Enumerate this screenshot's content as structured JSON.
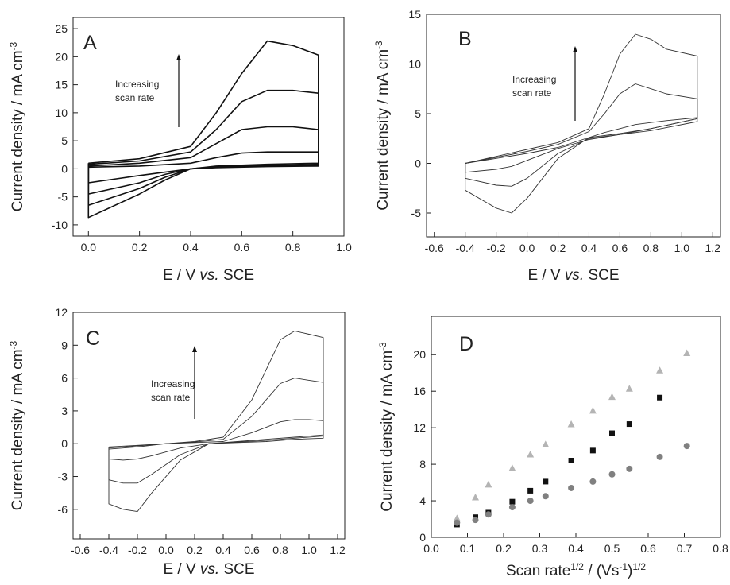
{
  "chart_data": [
    {
      "type": "line",
      "panel_label": "A",
      "annotation": [
        "Increasing",
        "scan rate"
      ],
      "xlabel": [
        {
          "text": "E / V "
        },
        {
          "text": "vs.",
          "style": "italic"
        },
        {
          "text": " SCE"
        }
      ],
      "ylabel": [
        {
          "text": "Current density / mA cm"
        },
        {
          "text": "-3",
          "sup": true
        }
      ],
      "xlim": [
        -0.06,
        1.0
      ],
      "xticks": [
        {
          "value": 0,
          "label": "0.0"
        },
        {
          "value": 0.2,
          "label": "0.2"
        },
        {
          "value": 0.4,
          "label": "0.4"
        },
        {
          "value": 0.6,
          "label": "0.6"
        },
        {
          "value": 0.8,
          "label": "0.8"
        },
        {
          "value": 1.0,
          "label": "1.0"
        }
      ],
      "ylim": [
        -12,
        27
      ],
      "yticks": [
        -10,
        -5,
        0,
        5,
        10,
        15,
        20,
        25
      ],
      "color": "#111111",
      "series": [
        {
          "x": [
            0,
            0.2,
            0.4,
            0.5,
            0.6,
            0.7,
            0.8,
            0.9,
            0.9,
            0.7,
            0.5,
            0.4,
            0.3,
            0.2,
            0,
            0
          ],
          "values": [
            1,
            1.8,
            4,
            10,
            17,
            22.8,
            22,
            20.3,
            1,
            0.8,
            0.5,
            0,
            -2,
            -4.5,
            -8.7,
            1
          ]
        },
        {
          "x": [
            0,
            0.2,
            0.4,
            0.5,
            0.6,
            0.7,
            0.8,
            0.9,
            0.9,
            0.7,
            0.5,
            0.4,
            0.3,
            0.2,
            0,
            0
          ],
          "values": [
            0.8,
            1.4,
            3,
            7,
            12,
            14,
            14,
            13.5,
            0.8,
            0.6,
            0.4,
            0,
            -1.5,
            -3.5,
            -6.5,
            0.8
          ]
        },
        {
          "x": [
            0,
            0.2,
            0.4,
            0.5,
            0.6,
            0.7,
            0.8,
            0.9,
            0.9,
            0.7,
            0.5,
            0.4,
            0.3,
            0.2,
            0,
            0
          ],
          "values": [
            0.5,
            1,
            2,
            4.5,
            7,
            7.5,
            7.5,
            7,
            0.6,
            0.5,
            0.3,
            0,
            -1,
            -2.5,
            -4.5,
            0.5
          ]
        },
        {
          "x": [
            0,
            0.2,
            0.4,
            0.5,
            0.6,
            0.7,
            0.8,
            0.9,
            0.9,
            0.7,
            0.5,
            0.4,
            0.3,
            0.2,
            0,
            0
          ],
          "values": [
            0.3,
            0.5,
            1,
            2,
            2.8,
            3,
            3,
            3,
            0.5,
            0.4,
            0.2,
            0,
            -0.6,
            -1.2,
            -2.5,
            0.3
          ]
        }
      ]
    },
    {
      "type": "line",
      "panel_label": "B",
      "annotation": [
        "Increasing",
        "scan rate"
      ],
      "xlabel": [
        {
          "text": "E / V "
        },
        {
          "text": "vs.",
          "style": "italic"
        },
        {
          "text": " SCE"
        }
      ],
      "ylabel": [
        {
          "text": "Current density / mA cm"
        },
        {
          "text": "-3",
          "sup": true
        }
      ],
      "xlim": [
        -0.65,
        1.25
      ],
      "xticks": [
        {
          "value": -0.6,
          "label": "-0.6"
        },
        {
          "value": -0.4,
          "label": "-0.4"
        },
        {
          "value": -0.2,
          "label": "-0.2"
        },
        {
          "value": 0,
          "label": "0.0"
        },
        {
          "value": 0.2,
          "label": "0.2"
        },
        {
          "value": 0.4,
          "label": "0.4"
        },
        {
          "value": 0.6,
          "label": "0.6"
        },
        {
          "value": 0.8,
          "label": "0.8"
        },
        {
          "value": 1.0,
          "label": "1.0"
        },
        {
          "value": 1.2,
          "label": "1.2"
        }
      ],
      "ylim": [
        -7.4,
        15
      ],
      "yticks": [
        -5,
        0,
        5,
        10,
        15
      ],
      "color": "#333333",
      "series": [
        {
          "x": [
            -0.4,
            -0.2,
            0,
            0.2,
            0.4,
            0.5,
            0.6,
            0.7,
            0.8,
            0.9,
            1.1,
            1.1,
            0.8,
            0.6,
            0.4,
            0.2,
            0,
            -0.1,
            -0.2,
            -0.4,
            -0.4
          ],
          "values": [
            0,
            0.7,
            1.4,
            2.1,
            3.5,
            7,
            11,
            13,
            12.5,
            11.5,
            10.8,
            4.5,
            3.5,
            3,
            2.6,
            0.5,
            -3.5,
            -5,
            -4.5,
            -2.7,
            0
          ]
        },
        {
          "x": [
            -0.4,
            -0.2,
            0,
            0.2,
            0.4,
            0.5,
            0.6,
            0.7,
            0.8,
            0.9,
            1.1,
            1.1,
            0.8,
            0.6,
            0.4,
            0.2,
            0,
            -0.1,
            -0.2,
            -0.4,
            -0.4
          ],
          "values": [
            0,
            0.6,
            1.2,
            1.9,
            3.2,
            5,
            7,
            8,
            7.5,
            7,
            6.5,
            4.2,
            3.3,
            2.9,
            2.5,
            1,
            -1.5,
            -2.3,
            -2.2,
            -1.5,
            0
          ]
        },
        {
          "x": [
            -0.4,
            -0.2,
            0,
            0.2,
            0.4,
            0.5,
            0.6,
            0.7,
            0.8,
            0.9,
            1.1,
            1.1,
            0.8,
            0.6,
            0.4,
            0.2,
            0,
            -0.1,
            -0.2,
            -0.4,
            -0.4
          ],
          "values": [
            0,
            0.5,
            1,
            1.6,
            2.6,
            3.1,
            3.5,
            3.9,
            4.1,
            4.3,
            4.6,
            4.5,
            3.5,
            2.9,
            2.4,
            1.5,
            0.3,
            -0.3,
            -0.6,
            -0.9,
            0
          ]
        }
      ]
    },
    {
      "type": "line",
      "panel_label": "C",
      "annotation": [
        "Increasing",
        "scan rate"
      ],
      "xlabel": [
        {
          "text": "E / V "
        },
        {
          "text": "vs.",
          "style": "italic"
        },
        {
          "text": " SCE"
        }
      ],
      "ylabel": [
        {
          "text": "Current density / mA cm"
        },
        {
          "text": "-3",
          "sup": true
        }
      ],
      "xlim": [
        -0.65,
        1.25
      ],
      "xticks": [
        {
          "value": -0.6,
          "label": "-0.6"
        },
        {
          "value": -0.4,
          "label": "-0.4"
        },
        {
          "value": -0.2,
          "label": "-0.2"
        },
        {
          "value": 0,
          "label": "0.0"
        },
        {
          "value": 0.2,
          "label": "0.2"
        },
        {
          "value": 0.4,
          "label": "0.4"
        },
        {
          "value": 0.6,
          "label": "0.6"
        },
        {
          "value": 0.8,
          "label": "0.8"
        },
        {
          "value": 1.0,
          "label": "1.0"
        },
        {
          "value": 1.2,
          "label": "1.2"
        }
      ],
      "ylim": [
        -8.7,
        12
      ],
      "yticks": [
        -6,
        -3,
        0,
        3,
        6,
        9,
        12
      ],
      "color": "#333333",
      "series": [
        {
          "x": [
            -0.4,
            -0.2,
            0,
            0.2,
            0.4,
            0.6,
            0.8,
            0.9,
            1.0,
            1.1,
            1.1,
            0.9,
            0.7,
            0.5,
            0.3,
            0.1,
            -0.1,
            -0.2,
            -0.3,
            -0.4,
            -0.4
          ],
          "values": [
            -0.5,
            -0.3,
            0,
            0.2,
            0.6,
            4,
            9.5,
            10.3,
            10,
            9.7,
            0.8,
            0.6,
            0.4,
            0.2,
            0,
            -1.5,
            -4.5,
            -6.2,
            -6,
            -5.5,
            -0.5
          ]
        },
        {
          "x": [
            -0.4,
            -0.2,
            0,
            0.2,
            0.4,
            0.6,
            0.8,
            0.9,
            1.0,
            1.1,
            1.1,
            0.9,
            0.7,
            0.5,
            0.3,
            0.1,
            -0.1,
            -0.2,
            -0.3,
            -0.4,
            -0.4
          ],
          "values": [
            -0.4,
            -0.2,
            0,
            0.15,
            0.4,
            2.5,
            5.5,
            6,
            5.8,
            5.6,
            0.7,
            0.5,
            0.3,
            0.15,
            0,
            -1,
            -2.8,
            -3.6,
            -3.6,
            -3.3,
            -0.4
          ]
        },
        {
          "x": [
            -0.4,
            -0.2,
            0,
            0.2,
            0.4,
            0.6,
            0.8,
            0.9,
            1.0,
            1.1,
            1.1,
            0.9,
            0.7,
            0.5,
            0.3,
            0.1,
            -0.1,
            -0.2,
            -0.3,
            -0.4,
            -0.4
          ],
          "values": [
            -0.3,
            -0.15,
            0,
            0.1,
            0.2,
            1,
            2,
            2.2,
            2.2,
            2.1,
            0.5,
            0.4,
            0.2,
            0.1,
            0,
            -0.4,
            -1.1,
            -1.4,
            -1.5,
            -1.4,
            -0.3
          ]
        }
      ]
    },
    {
      "type": "scatter",
      "panel_label": "D",
      "xlabel": [
        {
          "text": "Scan rate"
        },
        {
          "text": "1/2",
          "sup": true
        },
        {
          "text": " / (Vs"
        },
        {
          "text": "-1",
          "sup": true
        },
        {
          "text": ")"
        },
        {
          "text": "1/2",
          "sup": true
        }
      ],
      "ylabel": [
        {
          "text": "Current density / mA cm"
        },
        {
          "text": "-3",
          "sup": true
        }
      ],
      "xlim": [
        0,
        0.8
      ],
      "xticks": [
        {
          "value": 0,
          "label": "0.0"
        },
        {
          "value": 0.1,
          "label": "0.1"
        },
        {
          "value": 0.2,
          "label": "0.2"
        },
        {
          "value": 0.3,
          "label": "0.3"
        },
        {
          "value": 0.4,
          "label": "0.4"
        },
        {
          "value": 0.5,
          "label": "0.5"
        },
        {
          "value": 0.6,
          "label": "0.6"
        },
        {
          "value": 0.7,
          "label": "0.7"
        },
        {
          "value": 0.8,
          "label": "0.8"
        }
      ],
      "ylim": [
        0,
        24.2
      ],
      "yticks": [
        0,
        4,
        8,
        12,
        16,
        20
      ],
      "x": [
        0.071,
        0.122,
        0.158,
        0.224,
        0.274,
        0.316,
        0.387,
        0.447,
        0.5,
        0.548,
        0.632,
        0.707
      ],
      "series": [
        {
          "marker": "triangle",
          "color": "#b4b4b4",
          "values": [
            2.1,
            4.4,
            5.8,
            7.6,
            9.1,
            10.2,
            12.4,
            13.9,
            15.4,
            16.3,
            18.3,
            20.2
          ]
        },
        {
          "marker": "square",
          "color": "#111111",
          "values": [
            1.4,
            2.2,
            2.7,
            3.9,
            5.1,
            6.1,
            8.4,
            9.5,
            11.4,
            12.4,
            15.3,
            null
          ]
        },
        {
          "marker": "circle",
          "color": "#808080",
          "values": [
            1.6,
            1.9,
            2.5,
            3.3,
            4.0,
            4.5,
            5.4,
            6.1,
            6.9,
            7.5,
            8.8,
            10.0
          ]
        }
      ]
    }
  ]
}
